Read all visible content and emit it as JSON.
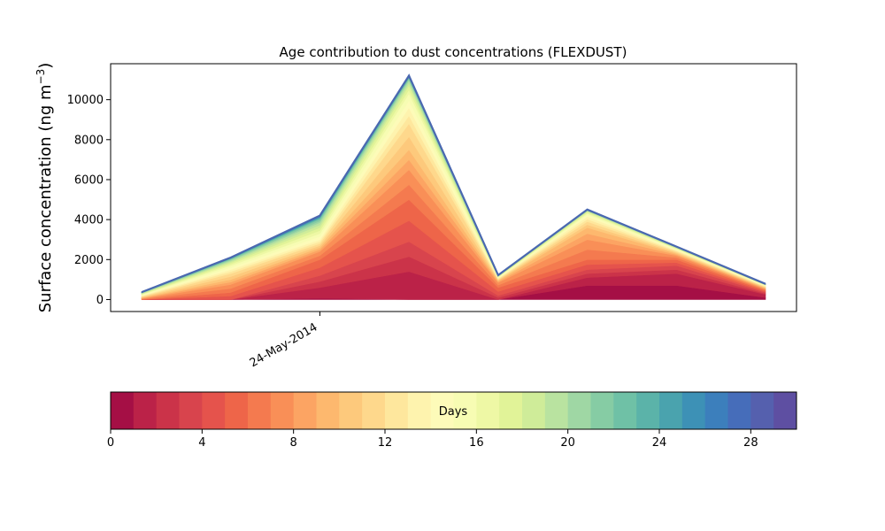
{
  "chart_data": {
    "type": "area",
    "title": "Age contribution to dust concentrations (FLEXDUST)",
    "xlabel": "",
    "ylabel": "Surface concentration (ng m",
    "ylabel_sup": "−3",
    "ylabel_close": ")",
    "ylim": [
      -600,
      11800
    ],
    "y_ticks": [
      0,
      2000,
      4000,
      6000,
      8000,
      10000
    ],
    "y_tick_labels": [
      "0",
      "2000",
      "4000",
      "6000",
      "8000",
      "10000"
    ],
    "x": [
      "2014-05-23T12:00",
      "2014-05-24T00:00",
      "2014-05-24T12:00",
      "2014-05-25T00:00",
      "2014-05-25T12:00",
      "2014-05-26T00:00",
      "2014-05-26T12:00",
      "2014-05-27T00:00"
    ],
    "x_ticks": [
      "2014-05-24T12:00"
    ],
    "x_tick_labels": [
      "24-May-2014"
    ],
    "total": [
      370,
      2100,
      4200,
      11200,
      1220,
      4500,
      2650,
      780
    ],
    "cumulative_by_day": [
      {
        "day": 1,
        "values": [
          0,
          0,
          70,
          0,
          0,
          700,
          700,
          100
        ]
      },
      {
        "day": 2,
        "values": [
          0,
          0,
          600,
          1400,
          0,
          1100,
          1300,
          250
        ]
      },
      {
        "day": 4,
        "values": [
          0,
          0,
          1200,
          2900,
          200,
          1500,
          1700,
          350
        ]
      },
      {
        "day": 6,
        "values": [
          0,
          350,
          2000,
          5000,
          600,
          2000,
          2000,
          450
        ]
      },
      {
        "day": 8,
        "values": [
          50,
          750,
          2400,
          6500,
          850,
          3000,
          2200,
          520
        ]
      },
      {
        "day": 10,
        "values": [
          100,
          1000,
          2600,
          7500,
          950,
          3600,
          2300,
          580
        ]
      },
      {
        "day": 12,
        "values": [
          150,
          1300,
          2800,
          8800,
          1020,
          3900,
          2400,
          630
        ]
      },
      {
        "day": 14,
        "values": [
          200,
          1500,
          3000,
          9600,
          1080,
          4150,
          2480,
          680
        ]
      },
      {
        "day": 16,
        "values": [
          250,
          1700,
          3300,
          10300,
          1120,
          4300,
          2540,
          720
        ]
      },
      {
        "day": 18,
        "values": [
          290,
          1850,
          3600,
          10700,
          1160,
          4400,
          2580,
          745
        ]
      },
      {
        "day": 20,
        "values": [
          320,
          1950,
          3850,
          10950,
          1185,
          4450,
          2610,
          760
        ]
      },
      {
        "day": 22,
        "values": [
          345,
          2030,
          4020,
          11080,
          1200,
          4475,
          2630,
          770
        ]
      },
      {
        "day": 24,
        "values": [
          355,
          2060,
          4100,
          11140,
          1210,
          4485,
          2640,
          775
        ]
      },
      {
        "day": 26,
        "values": [
          362,
          2080,
          4150,
          11170,
          1215,
          4492,
          2645,
          778
        ]
      },
      {
        "day": 28,
        "values": [
          367,
          2092,
          4185,
          11190,
          1218,
          4497,
          2648,
          779
        ]
      },
      {
        "day": 30,
        "values": [
          370,
          2100,
          4200,
          11200,
          1220,
          4500,
          2650,
          780
        ]
      }
    ],
    "colorbar": {
      "label": "Days",
      "range": [
        0,
        30
      ],
      "ticks": [
        0,
        4,
        8,
        12,
        16,
        20,
        24,
        28
      ],
      "tick_labels": [
        "0",
        "4",
        "8",
        "12",
        "16",
        "20",
        "24",
        "28"
      ],
      "colormap": "Spectral",
      "colors": [
        "#a50f45",
        "#bb2248",
        "#cb3349",
        "#d8444d",
        "#e5534c",
        "#ee6549",
        "#f47a4f",
        "#f98f57",
        "#fca463",
        "#fdb86e",
        "#fdc97c",
        "#fed88c",
        "#fee79d",
        "#fef3ae",
        "#fdfbb9",
        "#f7fcb3",
        "#eef8a5",
        "#e1f398",
        "#cfec99",
        "#b9e3a0",
        "#9fd7a4",
        "#86cca4",
        "#6fc1a6",
        "#5bb3a9",
        "#4aa3ae",
        "#3d91b6",
        "#3c7fbc",
        "#466dba",
        "#5560ae",
        "#5e4fa2"
      ]
    },
    "grid": false
  }
}
